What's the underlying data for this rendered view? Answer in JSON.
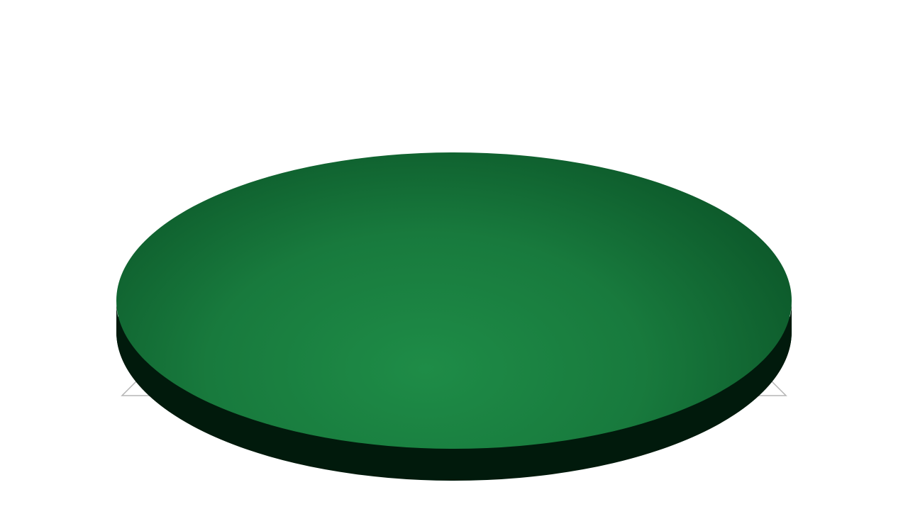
{
  "scene": {
    "object": "disc",
    "colors": {
      "background": "#ffffff",
      "top_center": "#1e8c47",
      "top_mid": "#187a3d",
      "top_edge": "#0d5a2b",
      "side": "#011a0c",
      "floor_outline": "#b5b5b5"
    }
  }
}
